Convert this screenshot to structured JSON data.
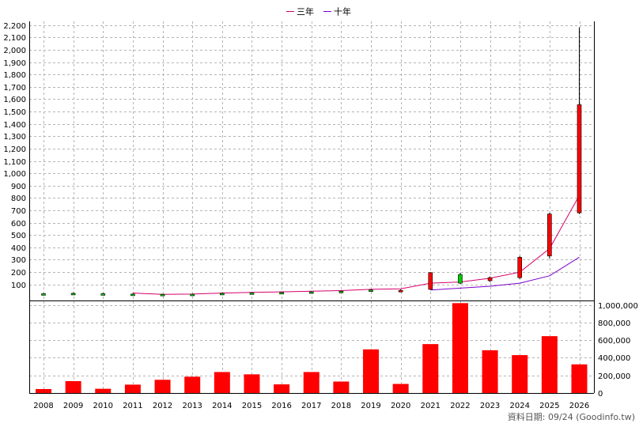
{
  "chart_data": {
    "type": "candlestick-with-volume",
    "legend": [
      {
        "label": "三年",
        "color": "#d6006b"
      },
      {
        "label": "十年",
        "color": "#7a00cc"
      }
    ],
    "x_labels": [
      "2008",
      "2009",
      "2010",
      "2011",
      "2012",
      "2013",
      "2014",
      "2015",
      "2016",
      "2017",
      "2018",
      "2019",
      "2020",
      "2021",
      "2022",
      "2023",
      "2024",
      "2025",
      "2026"
    ],
    "price_axis": {
      "range": [
        -30,
        2230
      ],
      "ticks": [
        100,
        200,
        300,
        400,
        500,
        600,
        700,
        800,
        900,
        1000,
        1100,
        1200,
        1300,
        1400,
        1500,
        1600,
        1700,
        1800,
        1900,
        2000,
        2100,
        2200
      ],
      "tick_labels": [
        "100",
        "200",
        "300",
        "400",
        "500",
        "600",
        "700",
        "800",
        "900",
        "1,000",
        "1,100",
        "1,200",
        "1,300",
        "1,400",
        "1,500",
        "1,600",
        "1,700",
        "1,800",
        "1,900",
        "2,000",
        "2,100",
        "2,200"
      ]
    },
    "volume_axis": {
      "range": [
        0,
        1050000
      ],
      "ticks": [
        0,
        200000,
        400000,
        600000,
        800000,
        1000000
      ],
      "tick_labels": [
        "0",
        "200,000",
        "400,000",
        "600,000",
        "800,000",
        "1,000,000"
      ]
    },
    "candles": [
      {
        "x": "2008",
        "open": 25,
        "close": 22,
        "high": 30,
        "low": 18
      },
      {
        "x": "2009",
        "open": 28,
        "close": 26,
        "high": 35,
        "low": 22
      },
      {
        "x": "2010",
        "open": 25,
        "close": 23,
        "high": 32,
        "low": 20
      },
      {
        "x": "2011",
        "open": 22,
        "close": 20,
        "high": 27,
        "low": 16
      },
      {
        "x": "2012",
        "open": 20,
        "close": 19,
        "high": 24,
        "low": 15
      },
      {
        "x": "2013",
        "open": 21,
        "close": 20,
        "high": 25,
        "low": 17
      },
      {
        "x": "2014",
        "open": 28,
        "close": 26,
        "high": 33,
        "low": 24
      },
      {
        "x": "2015",
        "open": 32,
        "close": 30,
        "high": 36,
        "low": 27
      },
      {
        "x": "2016",
        "open": 35,
        "close": 34,
        "high": 39,
        "low": 31
      },
      {
        "x": "2017",
        "open": 40,
        "close": 38,
        "high": 45,
        "low": 35
      },
      {
        "x": "2018",
        "open": 45,
        "close": 43,
        "high": 50,
        "low": 40
      },
      {
        "x": "2019",
        "open": 55,
        "close": 52,
        "high": 62,
        "low": 48
      },
      {
        "x": "2020",
        "open": 50,
        "close": 52,
        "high": 60,
        "low": 45
      },
      {
        "x": "2021",
        "open": 60,
        "close": 195,
        "high": 200,
        "low": 55
      },
      {
        "x": "2022",
        "open": 180,
        "close": 110,
        "high": 195,
        "low": 105
      },
      {
        "x": "2023",
        "open": 130,
        "close": 155,
        "high": 165,
        "low": 120
      },
      {
        "x": "2024",
        "open": 155,
        "close": 320,
        "high": 330,
        "low": 145
      },
      {
        "x": "2025",
        "open": 330,
        "close": 670,
        "high": 680,
        "low": 310
      },
      {
        "x": "2026",
        "open": 680,
        "close": 1555,
        "high": 2180,
        "low": 670
      }
    ],
    "series": [
      {
        "name": "三年",
        "values": [
          null,
          null,
          null,
          30,
          20,
          22,
          30,
          35,
          40,
          45,
          50,
          60,
          65,
          110,
          120,
          150,
          200,
          390,
          820
        ]
      },
      {
        "name": "十年",
        "values": [
          null,
          null,
          null,
          null,
          null,
          null,
          null,
          null,
          null,
          null,
          null,
          null,
          null,
          55,
          70,
          85,
          110,
          170,
          320
        ]
      }
    ],
    "volume": [
      45000,
      135000,
      48000,
      95000,
      150000,
      185000,
      238000,
      212000,
      98000,
      238000,
      130000,
      495000,
      103000,
      555000,
      1020000,
      485000,
      430000,
      645000,
      325000
    ],
    "grid": true
  },
  "footer": {
    "source_text": "資料日期: 09/24  (Goodinfo.tw)"
  }
}
